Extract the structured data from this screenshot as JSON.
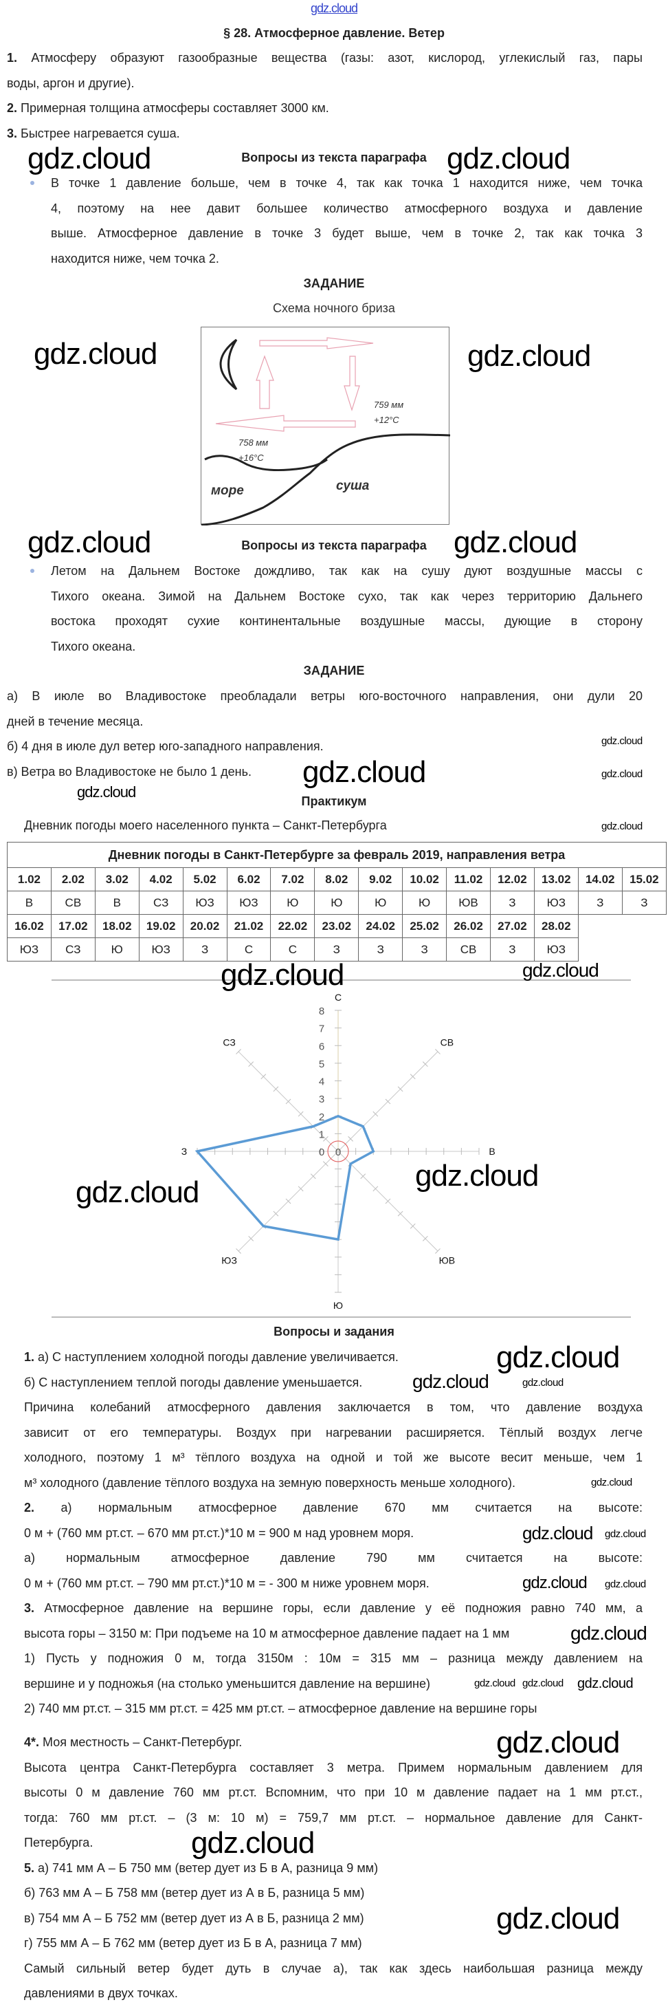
{
  "watermark": "gdz.cloud",
  "title": "§ 28. Атмосферное давление. Ветер",
  "intro": [
    {
      "b": "1.",
      "lines": [
        "Атмосферу образуют газообразные вещества (газы: азот, кислород, углекислый газ, пары",
        "воды, аргон и другие)."
      ]
    },
    {
      "b": "2.",
      "lines": [
        "Примерная толщина атмосферы составляет 3000 км."
      ]
    },
    {
      "b": "3.",
      "lines": [
        "Быстрее нагревается суша."
      ]
    }
  ],
  "questions_heading_1": "Вопросы из текста параграфа",
  "bullet_1": [
    {
      "lines": [
        "В точке 1 давление больше, чем в точке 4, так как точка 1 находится ниже, чем точка",
        "4, поэтому на нее давит большее количество атмосферного воздуха и давление",
        "выше. Атмосферное давление в точке 3 будет выше, чем в точке 2, так как точка 3",
        "находится ниже, чем точка 2."
      ]
    }
  ],
  "task_heading_1": "ЗАДАНИЕ",
  "diagram": {
    "caption": "Схема ночного бриза",
    "land_pressure": "759 мм",
    "land_temp": "+12°С",
    "sea_pressure": "758 мм",
    "sea_temp": "+16°С",
    "sea_label": "море",
    "land_label": "суша",
    "arrow_color": "#e8a0b0"
  },
  "questions_heading_2": "Вопросы из текста параграфа",
  "bullet_2": [
    {
      "lines": [
        "Летом на Дальнем Востоке дождливо, так как на сушу дуют воздушные массы с",
        "Тихого океана. Зимой на Дальнем Востоке сухо, так как через территорию Дальнего",
        "востока проходят сухие континентальные воздушные массы, дующие в сторону",
        "Тихого океана."
      ]
    }
  ],
  "task_heading_2": "ЗАДАНИЕ",
  "task_2": [
    {
      "lines": [
        "а) В июле во Владивостоке преобладали ветры юго-восточного направления, они дули 20",
        "дней в течение месяца."
      ]
    },
    {
      "lines": [
        "б) 4 дня в июле дул ветер юго-западного направления."
      ]
    },
    {
      "lines": [
        "в) Ветра во Владивостоке не было 1 день."
      ]
    }
  ],
  "practicum_heading": "Практикум",
  "diary_caption": "Дневник погоды моего населенного пункта – Санкт-Петербурга",
  "table": {
    "title": "Дневник погоды в Санкт-Петербурге за февраль 2019, направления ветра",
    "rows": [
      {
        "dates": [
          "1.02",
          "2.02",
          "3.02",
          "4.02",
          "5.02",
          "6.02",
          "7.02",
          "8.02",
          "9.02",
          "10.02",
          "11.02",
          "12.02",
          "13.02",
          "14.02",
          "15.02"
        ],
        "dirs": [
          "В",
          "СВ",
          "В",
          "СЗ",
          "ЮЗ",
          "ЮЗ",
          "Ю",
          "Ю",
          "Ю",
          "Ю",
          "ЮВ",
          "З",
          "ЮЗ",
          "З",
          "З"
        ]
      },
      {
        "dates": [
          "16.02",
          "17.02",
          "18.02",
          "19.02",
          "20.02",
          "21.02",
          "22.02",
          "23.02",
          "24.02",
          "25.02",
          "26.02",
          "27.02",
          "28.02"
        ],
        "dirs": [
          "ЮЗ",
          "СЗ",
          "Ю",
          "ЮЗ",
          "З",
          "С",
          "С",
          "З",
          "З",
          "З",
          "СВ",
          "З",
          "ЮЗ"
        ]
      }
    ]
  },
  "chart_data": {
    "type": "radar",
    "categories": [
      "С",
      "СВ",
      "В",
      "ЮВ",
      "Ю",
      "ЮЗ",
      "З",
      "СЗ"
    ],
    "values": [
      2,
      2,
      2,
      1,
      5,
      6,
      8,
      2
    ],
    "rlim": [
      0,
      8
    ],
    "tick_labels": [
      "0",
      "1",
      "2",
      "3",
      "4",
      "5",
      "6",
      "7",
      "8"
    ],
    "center_label": "0",
    "grid": false,
    "legend": "none",
    "series_color": "#5b9bd5",
    "center_circle_color": "#e05050"
  },
  "qa_heading": "Вопросы и задания",
  "qa_a": [
    {
      "b": "1.",
      "lines": [
        "а) С наступлением холодной погоды давление увеличивается."
      ]
    },
    {
      "lines": [
        "б) С наступлением теплой погоды давление уменьшается."
      ]
    },
    {
      "lines": [
        "Причина колебаний атмосферного давления заключается в том, что давление воздуха",
        "зависит от его температуры. Воздух при нагревании расширяется. Тёплый воздух легче",
        "холодного, поэтому 1 м³ тёплого воздуха на одной и той же высоте весит меньше, чем 1",
        "м³ холодного (давление тёплого воздуха на земную поверхность меньше холодного)."
      ]
    },
    {
      "b": "2.",
      "lines": [
        "а) нормальным атмосферное давление 670 мм считается на высоте:",
        "0 м + (760 мм рт.ст. – 670 мм рт.ст.)*10 м = 900 м над уровнем моря."
      ]
    },
    {
      "lines": [
        "а) нормальным атмосферное давление 790 мм считается на высоте:",
        "0 м + (760 мм рт.ст. – 790 мм рт.ст.)*10 м = - 300 м ниже уровнем моря."
      ]
    },
    {
      "b": "3.",
      "lines": [
        "Атмосферное давление на вершине горы, если давление у её подножия равно 740 мм, а",
        "высота горы – 3150 м: При подъеме на 10 м атмосферное давление падает на 1 мм"
      ]
    },
    {
      "lines": [
        "1) Пусть у подножия 0 м, тогда 3150м : 10м = 315 мм – разница между давлением на",
        "вершине и у подножья (на столько уменьшится давление на вершине)"
      ]
    },
    {
      "lines": [
        "2) 740 мм рт.ст. – 315 мм рт.ст. = 425 мм рт.ст. – атмосферное давление на вершине горы"
      ]
    }
  ],
  "qa_b": [
    {
      "b": "4*.",
      "lines": [
        "Моя местность – Санкт-Петербург."
      ]
    },
    {
      "lines": [
        "Высота центра Санкт-Петербурга составляет 3 метра. Примем нормальным давлением для",
        "высоты 0 м давление 760 мм рт.ст. Вспомним, что при 10 м давление падает на 1 мм рт.ст.,",
        "тогда: 760 мм рт.ст. – (3 м: 10 м) = 759,7 мм рт.ст. – нормальное давление для Санкт-",
        "Петербурга."
      ]
    },
    {
      "b": "5.",
      "lines": [
        "а) 741 мм А – Б 750 мм (ветер дует из Б в А, разница 9 мм)"
      ]
    },
    {
      "lines": [
        "б) 763 мм А – Б 758 мм (ветер дует из А в Б, разница 5 мм)"
      ]
    },
    {
      "lines": [
        "в) 754 мм А – Б 752 мм (ветер дует из А в Б, разница 2 мм)"
      ]
    },
    {
      "lines": [
        "г) 755 мм А – Б 762 мм (ветер дует из Б в А, разница 7 мм)"
      ]
    },
    {
      "lines": [
        "Самый сильный ветер будет дуть в случае а), так как здесь наибольшая разница между",
        "давлениями в двух точках."
      ]
    }
  ]
}
